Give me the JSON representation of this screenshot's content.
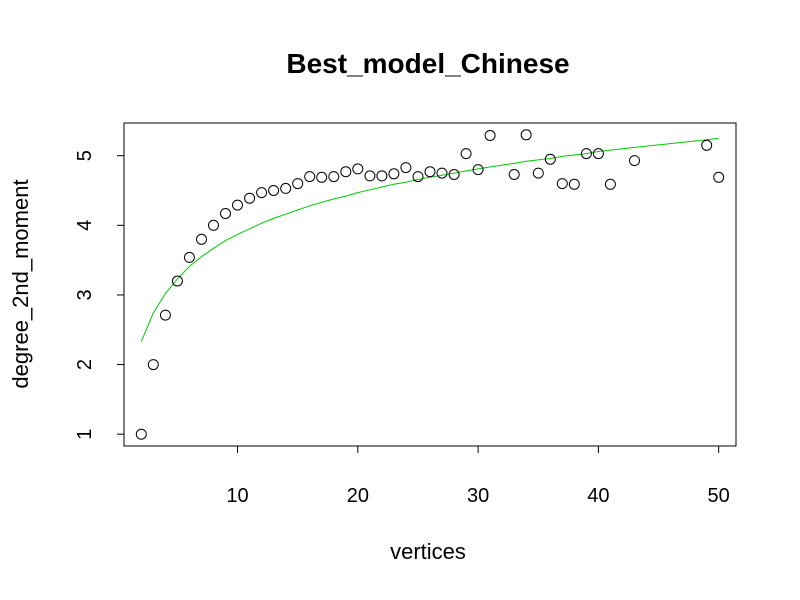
{
  "chart_data": {
    "type": "scatter",
    "title": "Best_model_Chinese",
    "xlabel": "vertices",
    "ylabel": "degree_2nd_moment",
    "xlim": [
      0.56,
      51.44
    ],
    "ylim": [
      0.83,
      5.47
    ],
    "x_ticks": [
      10,
      20,
      30,
      40,
      50
    ],
    "y_ticks": [
      1,
      2,
      3,
      4,
      5
    ],
    "grid": false,
    "legend": "none",
    "colors": {
      "points": "#000000",
      "fit": "#00cc00",
      "axes": "#000000"
    },
    "series": [
      {
        "type": "scatter",
        "marker": "open-circle",
        "x": [
          2,
          3,
          4,
          5,
          6,
          7,
          8,
          9,
          10,
          11,
          12,
          13,
          14,
          15,
          16,
          17,
          18,
          19,
          20,
          21,
          22,
          23,
          24,
          25,
          26,
          27,
          28,
          29,
          30,
          31,
          33,
          34,
          35,
          36,
          37,
          38,
          39,
          40,
          41,
          43,
          49,
          50
        ],
        "y": [
          1.0,
          2.0,
          2.71,
          3.2,
          3.54,
          3.8,
          4.0,
          4.17,
          4.29,
          4.39,
          4.47,
          4.5,
          4.53,
          4.6,
          4.7,
          4.69,
          4.7,
          4.77,
          4.81,
          4.71,
          4.71,
          4.74,
          4.83,
          4.7,
          4.77,
          4.75,
          4.73,
          5.03,
          4.8,
          5.29,
          4.73,
          5.3,
          4.75,
          4.95,
          4.6,
          4.59,
          5.03,
          5.03,
          4.59,
          4.93,
          5.15,
          4.69
        ]
      },
      {
        "type": "line",
        "x": [
          2,
          3,
          4,
          5,
          6,
          7,
          8,
          9,
          10,
          11,
          12,
          13,
          14,
          15,
          16,
          17,
          18,
          19,
          20,
          21,
          22,
          23,
          24,
          25,
          26,
          27,
          28,
          29,
          30,
          31,
          33,
          34,
          35,
          36,
          37,
          38,
          39,
          40,
          41,
          43,
          49,
          50
        ],
        "y": [
          2.33,
          2.74,
          3.02,
          3.23,
          3.41,
          3.55,
          3.67,
          3.78,
          3.87,
          3.95,
          4.03,
          4.1,
          4.16,
          4.22,
          4.28,
          4.33,
          4.38,
          4.42,
          4.47,
          4.51,
          4.55,
          4.59,
          4.62,
          4.66,
          4.69,
          4.72,
          4.75,
          4.78,
          4.81,
          4.84,
          4.89,
          4.92,
          4.94,
          4.96,
          4.99,
          5.01,
          5.03,
          5.06,
          5.08,
          5.12,
          5.23,
          5.25
        ]
      }
    ]
  }
}
